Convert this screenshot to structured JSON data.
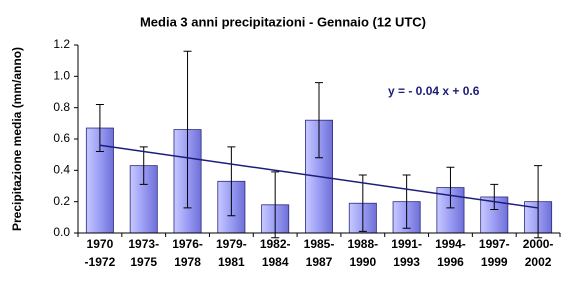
{
  "chart_data": {
    "type": "bar",
    "title": "Media 3 anni precipitazioni - Gennaio (12 UTC)",
    "y_label": "Precipitazione media (mm/anno)",
    "categories": [
      [
        "1970",
        "-1972"
      ],
      [
        "1973-",
        "1975"
      ],
      [
        "1976-",
        "1978"
      ],
      [
        "1979-",
        "1981"
      ],
      [
        "1982-",
        "1984"
      ],
      [
        "1985-",
        "1987"
      ],
      [
        "1988-",
        "1990"
      ],
      [
        "1991-",
        "1993"
      ],
      [
        "1994-",
        "1996"
      ],
      [
        "1997-",
        "1999"
      ],
      [
        "2000-",
        "2002"
      ]
    ],
    "values": [
      0.67,
      0.43,
      0.66,
      0.33,
      0.18,
      0.72,
      0.19,
      0.2,
      0.29,
      0.23,
      0.2
    ],
    "errors": [
      0.15,
      0.12,
      0.5,
      0.22,
      0.21,
      0.24,
      0.18,
      0.17,
      0.13,
      0.08,
      0.23
    ],
    "color": "#9a9cf4",
    "ylim": [
      0,
      1.2
    ],
    "yticks": [
      {
        "value": 0,
        "label": "0.0"
      },
      0.2,
      0.4,
      0.6,
      0.8,
      {
        "value": 1,
        "label": "1.0"
      },
      1.2
    ],
    "trendline": {
      "slope": -0.04,
      "intercept": 0.6,
      "label": "y = - 0.04 x + 0.6",
      "color": "#1c1c7a"
    }
  }
}
